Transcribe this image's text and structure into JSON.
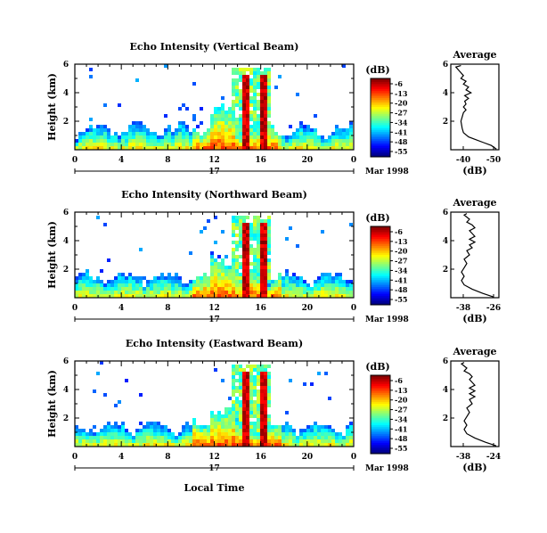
{
  "chart_data": [
    {
      "type": "heatmap",
      "title": "Echo Intensity (Vertical Beam)",
      "ylabel": "Height (km)",
      "yticks": [
        "2",
        "4",
        "6"
      ],
      "ylim": [
        0,
        6
      ],
      "xticks": [
        "0",
        "4",
        "8",
        "12",
        "16",
        "20",
        "0"
      ],
      "xlim": [
        0,
        24
      ],
      "date_day": "17",
      "date_label": "Mar 1998",
      "colorbar": {
        "unit": "(dB)",
        "ticks": [
          "-6",
          "-13",
          "-20",
          "-27",
          "-34",
          "-41",
          "-48",
          "-55"
        ]
      },
      "inset": {
        "title": "Average",
        "xlabel": "(dB)",
        "xticks": [
          "-40",
          "-50"
        ],
        "yticks": [
          "2",
          "4",
          "6"
        ],
        "xlim": [
          -36,
          -55
        ],
        "profile": [
          [
            -54,
            0.05
          ],
          [
            -52,
            0.3
          ],
          [
            -49,
            0.5
          ],
          [
            -46,
            0.7
          ],
          [
            -43,
            0.9
          ],
          [
            -41,
            1.2
          ],
          [
            -40.5,
            1.5
          ],
          [
            -40,
            2.0
          ],
          [
            -40.5,
            2.3
          ],
          [
            -41,
            2.6
          ],
          [
            -42,
            2.8
          ],
          [
            -41,
            3.0
          ],
          [
            -42,
            3.2
          ],
          [
            -41.5,
            3.4
          ],
          [
            -43,
            3.6
          ],
          [
            -41.5,
            3.8
          ],
          [
            -44,
            4.0
          ],
          [
            -42,
            4.2
          ],
          [
            -43,
            4.4
          ],
          [
            -41,
            4.6
          ],
          [
            -42,
            4.8
          ],
          [
            -40,
            5.0
          ],
          [
            -41,
            5.2
          ],
          [
            -40,
            5.4
          ],
          [
            -39,
            5.6
          ],
          [
            -38,
            5.8
          ],
          [
            -40,
            5.9
          ]
        ]
      }
    },
    {
      "type": "heatmap",
      "title": "Echo Intensity (Northward Beam)",
      "ylabel": "Height (km)",
      "yticks": [
        "2",
        "4",
        "6"
      ],
      "ylim": [
        0,
        6
      ],
      "xticks": [
        "0",
        "4",
        "8",
        "12",
        "16",
        "20",
        "0"
      ],
      "xlim": [
        0,
        24
      ],
      "date_day": "17",
      "date_label": "Mar 1998",
      "colorbar": {
        "unit": "(dB)",
        "ticks": [
          "-6",
          "-13",
          "-20",
          "-27",
          "-34",
          "-41",
          "-48",
          "-55"
        ]
      },
      "inset": {
        "title": "Average",
        "xlabel": "(dB)",
        "xticks": [
          "-38",
          "-26"
        ],
        "yticks": [
          "2",
          "4",
          "6"
        ],
        "xlim": [
          -42,
          -24
        ],
        "profile": [
          [
            -26,
            0.05
          ],
          [
            -30,
            0.3
          ],
          [
            -34,
            0.6
          ],
          [
            -37,
            0.9
          ],
          [
            -38,
            1.2
          ],
          [
            -37,
            1.5
          ],
          [
            -38,
            1.8
          ],
          [
            -37,
            2.1
          ],
          [
            -36,
            2.4
          ],
          [
            -37,
            2.7
          ],
          [
            -35,
            3.0
          ],
          [
            -36,
            3.3
          ],
          [
            -34,
            3.5
          ],
          [
            -35,
            3.7
          ],
          [
            -33,
            3.9
          ],
          [
            -35,
            4.1
          ],
          [
            -33,
            4.3
          ],
          [
            -34,
            4.5
          ],
          [
            -35,
            4.7
          ],
          [
            -33,
            4.9
          ],
          [
            -34,
            5.1
          ],
          [
            -36,
            5.3
          ],
          [
            -35,
            5.5
          ],
          [
            -37,
            5.8
          ],
          [
            -36,
            5.9
          ]
        ]
      }
    },
    {
      "type": "heatmap",
      "title": "Echo Intensity (Eastward Beam)",
      "ylabel": "Height (km)",
      "yticks": [
        "2",
        "4",
        "6"
      ],
      "ylim": [
        0,
        6
      ],
      "xticks": [
        "0",
        "4",
        "8",
        "12",
        "16",
        "20",
        "0"
      ],
      "xlim": [
        0,
        24
      ],
      "date_day": "17",
      "date_label": "Mar 1998",
      "xlabel": "Local Time",
      "colorbar": {
        "unit": "(dB)",
        "ticks": [
          "-6",
          "-13",
          "-20",
          "-27",
          "-34",
          "-41",
          "-48",
          "-55"
        ]
      },
      "inset": {
        "title": "Average",
        "xlabel": "(dB)",
        "xticks": [
          "-38",
          "-24"
        ],
        "yticks": [
          "2",
          "4",
          "6"
        ],
        "xlim": [
          -42,
          -24
        ],
        "profile": [
          [
            -25,
            0.05
          ],
          [
            -29,
            0.3
          ],
          [
            -33,
            0.6
          ],
          [
            -36,
            0.9
          ],
          [
            -37,
            1.2
          ],
          [
            -36,
            1.5
          ],
          [
            -37,
            1.8
          ],
          [
            -36,
            2.1
          ],
          [
            -35,
            2.4
          ],
          [
            -36,
            2.7
          ],
          [
            -34,
            3.0
          ],
          [
            -35,
            3.3
          ],
          [
            -33,
            3.5
          ],
          [
            -35,
            3.7
          ],
          [
            -33,
            3.9
          ],
          [
            -35,
            4.1
          ],
          [
            -33,
            4.3
          ],
          [
            -34,
            4.5
          ],
          [
            -35,
            4.7
          ],
          [
            -34,
            4.9
          ],
          [
            -35,
            5.1
          ],
          [
            -37,
            5.3
          ],
          [
            -36,
            5.5
          ],
          [
            -38,
            5.8
          ],
          [
            -37,
            5.9
          ]
        ]
      }
    }
  ]
}
